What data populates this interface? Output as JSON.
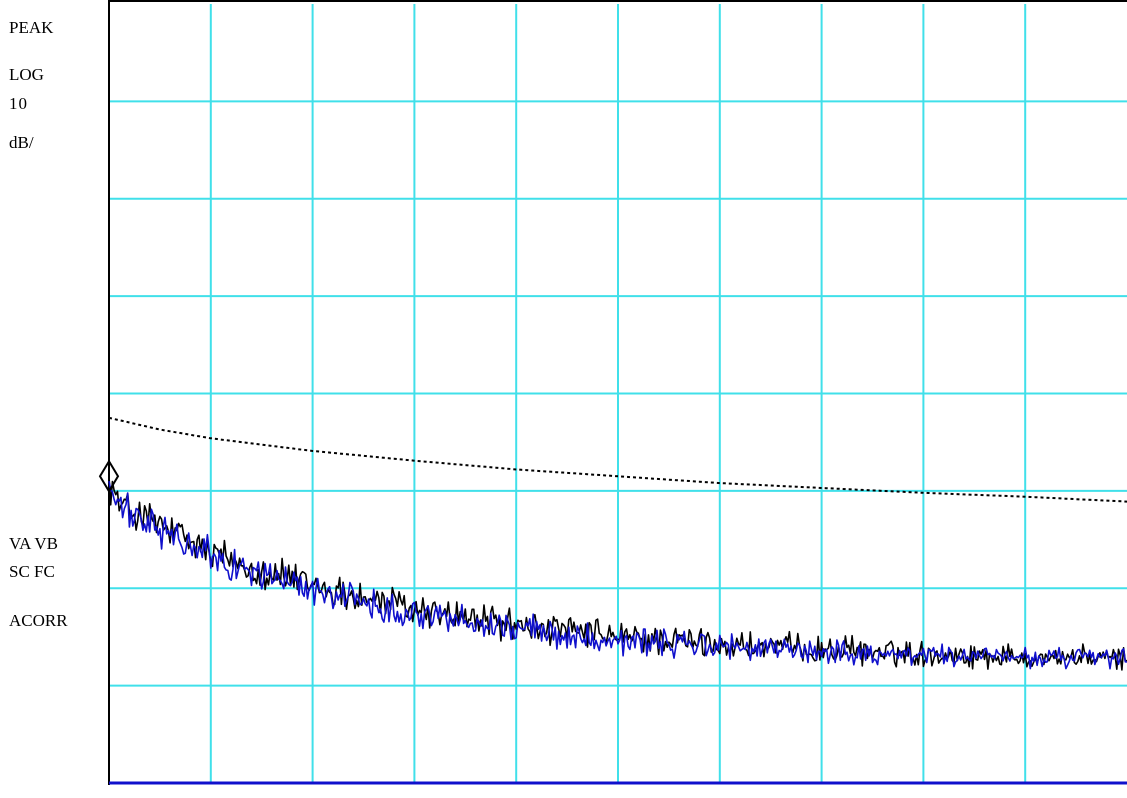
{
  "annotations": {
    "detector_mode": "PEAK",
    "scale_type": "LOG",
    "scale_per_div_value": "10",
    "scale_per_div_unit": "dB/",
    "status_line_1": "VA VB",
    "status_line_2": "SC FC",
    "status_line_3": "ACORR"
  },
  "colors": {
    "grid": "#40e0ea",
    "trace_a": "#000000",
    "trace_b": "#1010cc",
    "limit_line": "#000000",
    "frame": "#000000",
    "baseline": "#1010cc"
  },
  "chart_data": {
    "type": "line",
    "title": "",
    "xlabel": "",
    "ylabel": "",
    "grid": true,
    "x_divisions": 10,
    "y_divisions": 8,
    "xlim": [
      0,
      10
    ],
    "ylim": [
      -80,
      0
    ],
    "y_scale_db_per_div": 10,
    "marker": {
      "x": 0.0,
      "y": -48.5,
      "shape": "diamond"
    },
    "limit_line": {
      "x": [
        0.0,
        0.5,
        1.0,
        2.0,
        3.0,
        4.0,
        5.0,
        6.0,
        7.0,
        8.0,
        9.0,
        10.0
      ],
      "values": [
        -42.5,
        -43.7,
        -44.6,
        -45.9,
        -46.9,
        -47.8,
        -48.5,
        -49.2,
        -49.7,
        -50.2,
        -50.6,
        -51.1
      ]
    },
    "series": [
      {
        "x": [
          0.0,
          0.1,
          0.2,
          0.3,
          0.5,
          0.75,
          1.0,
          1.5,
          2.0,
          2.5,
          3.0,
          3.5,
          4.0,
          4.5,
          5.0,
          5.5,
          6.0,
          6.5,
          7.0,
          7.5,
          8.0,
          8.5,
          9.0,
          9.5,
          10.0
        ],
        "values": [
          -48.5,
          -51.5,
          -52.0,
          -52.5,
          -53.6,
          -55.0,
          -56.4,
          -58.2,
          -59.7,
          -61.0,
          -62.1,
          -63.0,
          -63.8,
          -64.5,
          -65.0,
          -65.4,
          -65.8,
          -66.1,
          -66.3,
          -66.5,
          -66.7,
          -66.9,
          -67.0,
          -67.1,
          -67.2
        ],
        "noise_db": 1.8
      },
      {
        "x": [
          0.0,
          0.1,
          0.2,
          0.3,
          0.5,
          0.75,
          1.0,
          1.5,
          2.0,
          2.5,
          3.0,
          3.5,
          4.0,
          4.5,
          5.0,
          5.5,
          6.0,
          6.5,
          7.0,
          7.5,
          8.0,
          8.5,
          9.0,
          9.5,
          10.0
        ],
        "values": [
          -49.0,
          -52.0,
          -52.4,
          -52.9,
          -54.0,
          -55.4,
          -56.8,
          -58.6,
          -60.1,
          -61.4,
          -62.5,
          -63.4,
          -64.1,
          -64.8,
          -65.3,
          -65.7,
          -66.0,
          -66.3,
          -66.5,
          -66.7,
          -66.9,
          -67.0,
          -67.1,
          -67.2,
          -67.3
        ],
        "noise_db": 1.6
      }
    ]
  }
}
